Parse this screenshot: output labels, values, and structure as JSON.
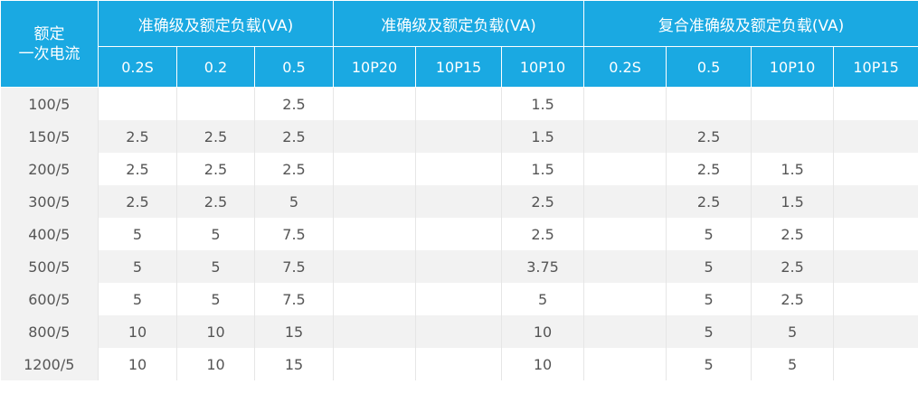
{
  "header": {
    "row_head_line1": "额定",
    "row_head_line2": "一次电流",
    "groups": [
      "准确级及额定负载(VA)",
      "准确级及额定负载(VA)",
      "复合准确级及额定负载(VA)"
    ],
    "columns": [
      "0.2S",
      "0.2",
      "0.5",
      "10P20",
      "10P15",
      "10P10",
      "0.2S",
      "0.5",
      "10P10",
      "10P15"
    ]
  },
  "rows": [
    {
      "label": "100/5",
      "cells": [
        "",
        "",
        "2.5",
        "",
        "",
        "1.5",
        "",
        "",
        "",
        ""
      ]
    },
    {
      "label": "150/5",
      "cells": [
        "2.5",
        "2.5",
        "2.5",
        "",
        "",
        "1.5",
        "",
        "2.5",
        "",
        ""
      ]
    },
    {
      "label": "200/5",
      "cells": [
        "2.5",
        "2.5",
        "2.5",
        "",
        "",
        "1.5",
        "",
        "2.5",
        "1.5",
        ""
      ]
    },
    {
      "label": "300/5",
      "cells": [
        "2.5",
        "2.5",
        "5",
        "",
        "",
        "2.5",
        "",
        "2.5",
        "1.5",
        ""
      ]
    },
    {
      "label": "400/5",
      "cells": [
        "5",
        "5",
        "7.5",
        "",
        "",
        "2.5",
        "",
        "5",
        "2.5",
        ""
      ]
    },
    {
      "label": "500/5",
      "cells": [
        "5",
        "5",
        "7.5",
        "",
        "",
        "3.75",
        "",
        "5",
        "2.5",
        ""
      ]
    },
    {
      "label": "600/5",
      "cells": [
        "5",
        "5",
        "7.5",
        "",
        "",
        "5",
        "",
        "5",
        "2.5",
        ""
      ]
    },
    {
      "label": "800/5",
      "cells": [
        "10",
        "10",
        "15",
        "",
        "",
        "10",
        "",
        "5",
        "5",
        ""
      ]
    },
    {
      "label": "1200/5",
      "cells": [
        "10",
        "10",
        "15",
        "",
        "",
        "10",
        "",
        "5",
        "5",
        ""
      ]
    }
  ],
  "colors": {
    "header_bg": "#1aa9e2",
    "header_text": "#ffffff",
    "body_text": "#555555",
    "stripe": "#f2f2f2"
  }
}
